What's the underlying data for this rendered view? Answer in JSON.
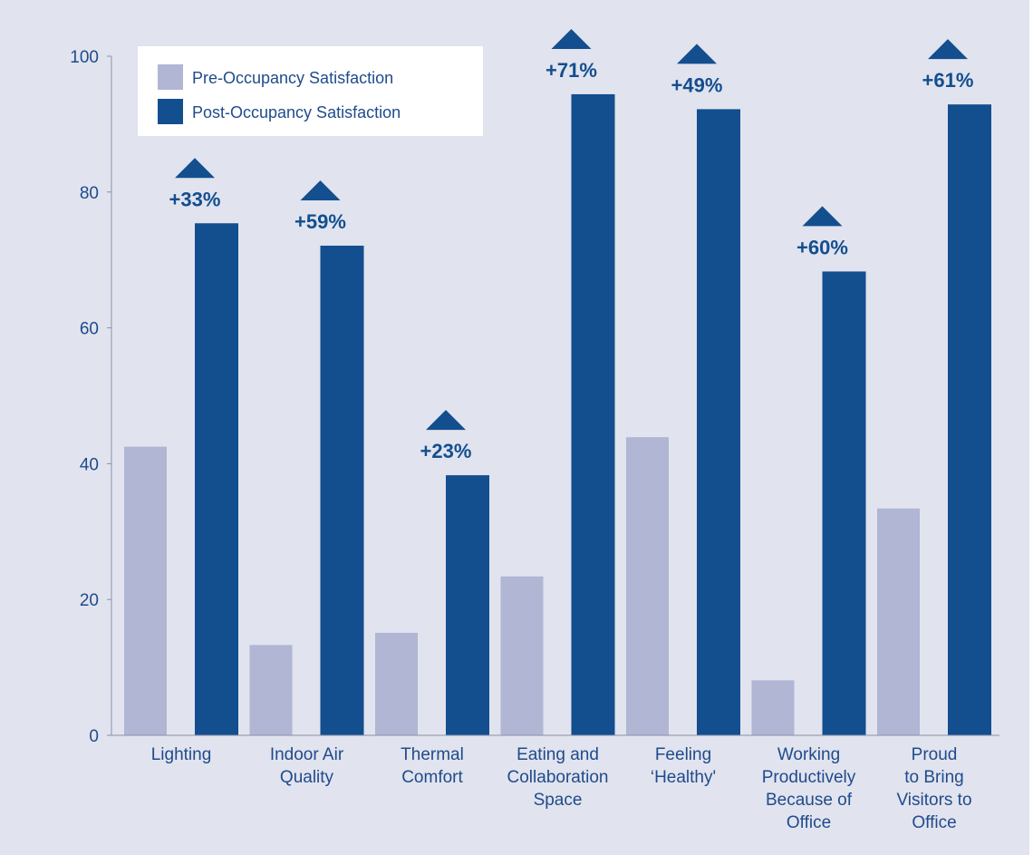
{
  "chart_data": {
    "type": "bar",
    "title": "",
    "xlabel": "",
    "ylabel": "",
    "ylim": [
      0,
      100
    ],
    "yticks": [
      0,
      20,
      40,
      60,
      80,
      100
    ],
    "grid": false,
    "legend_position": "top-left",
    "categories": [
      [
        "Lighting"
      ],
      [
        "Indoor Air",
        "Quality"
      ],
      [
        "Thermal",
        "Comfort"
      ],
      [
        "Eating and",
        "Collaboration",
        "Space"
      ],
      [
        "Feeling",
        "‘Healthy'"
      ],
      [
        "Working",
        "Productively",
        "Because of",
        "Office"
      ],
      [
        "Proud",
        "to Bring",
        "Visitors to",
        "Office"
      ]
    ],
    "series": [
      {
        "name": "Pre-Occupancy Satisfaction",
        "color": "#b0b6d4",
        "values": [
          42.5,
          13.3,
          15.1,
          23.4,
          43.9,
          8.1,
          33.4
        ]
      },
      {
        "name": "Post-Occupancy Satisfaction",
        "color": "#134e8f",
        "values": [
          75.4,
          72.1,
          38.3,
          94.4,
          92.2,
          68.3,
          92.9
        ]
      }
    ],
    "annotations": [
      "+33%",
      "+59%",
      "+23%",
      "+71%",
      "+49%",
      "+60%",
      "+61%"
    ]
  }
}
